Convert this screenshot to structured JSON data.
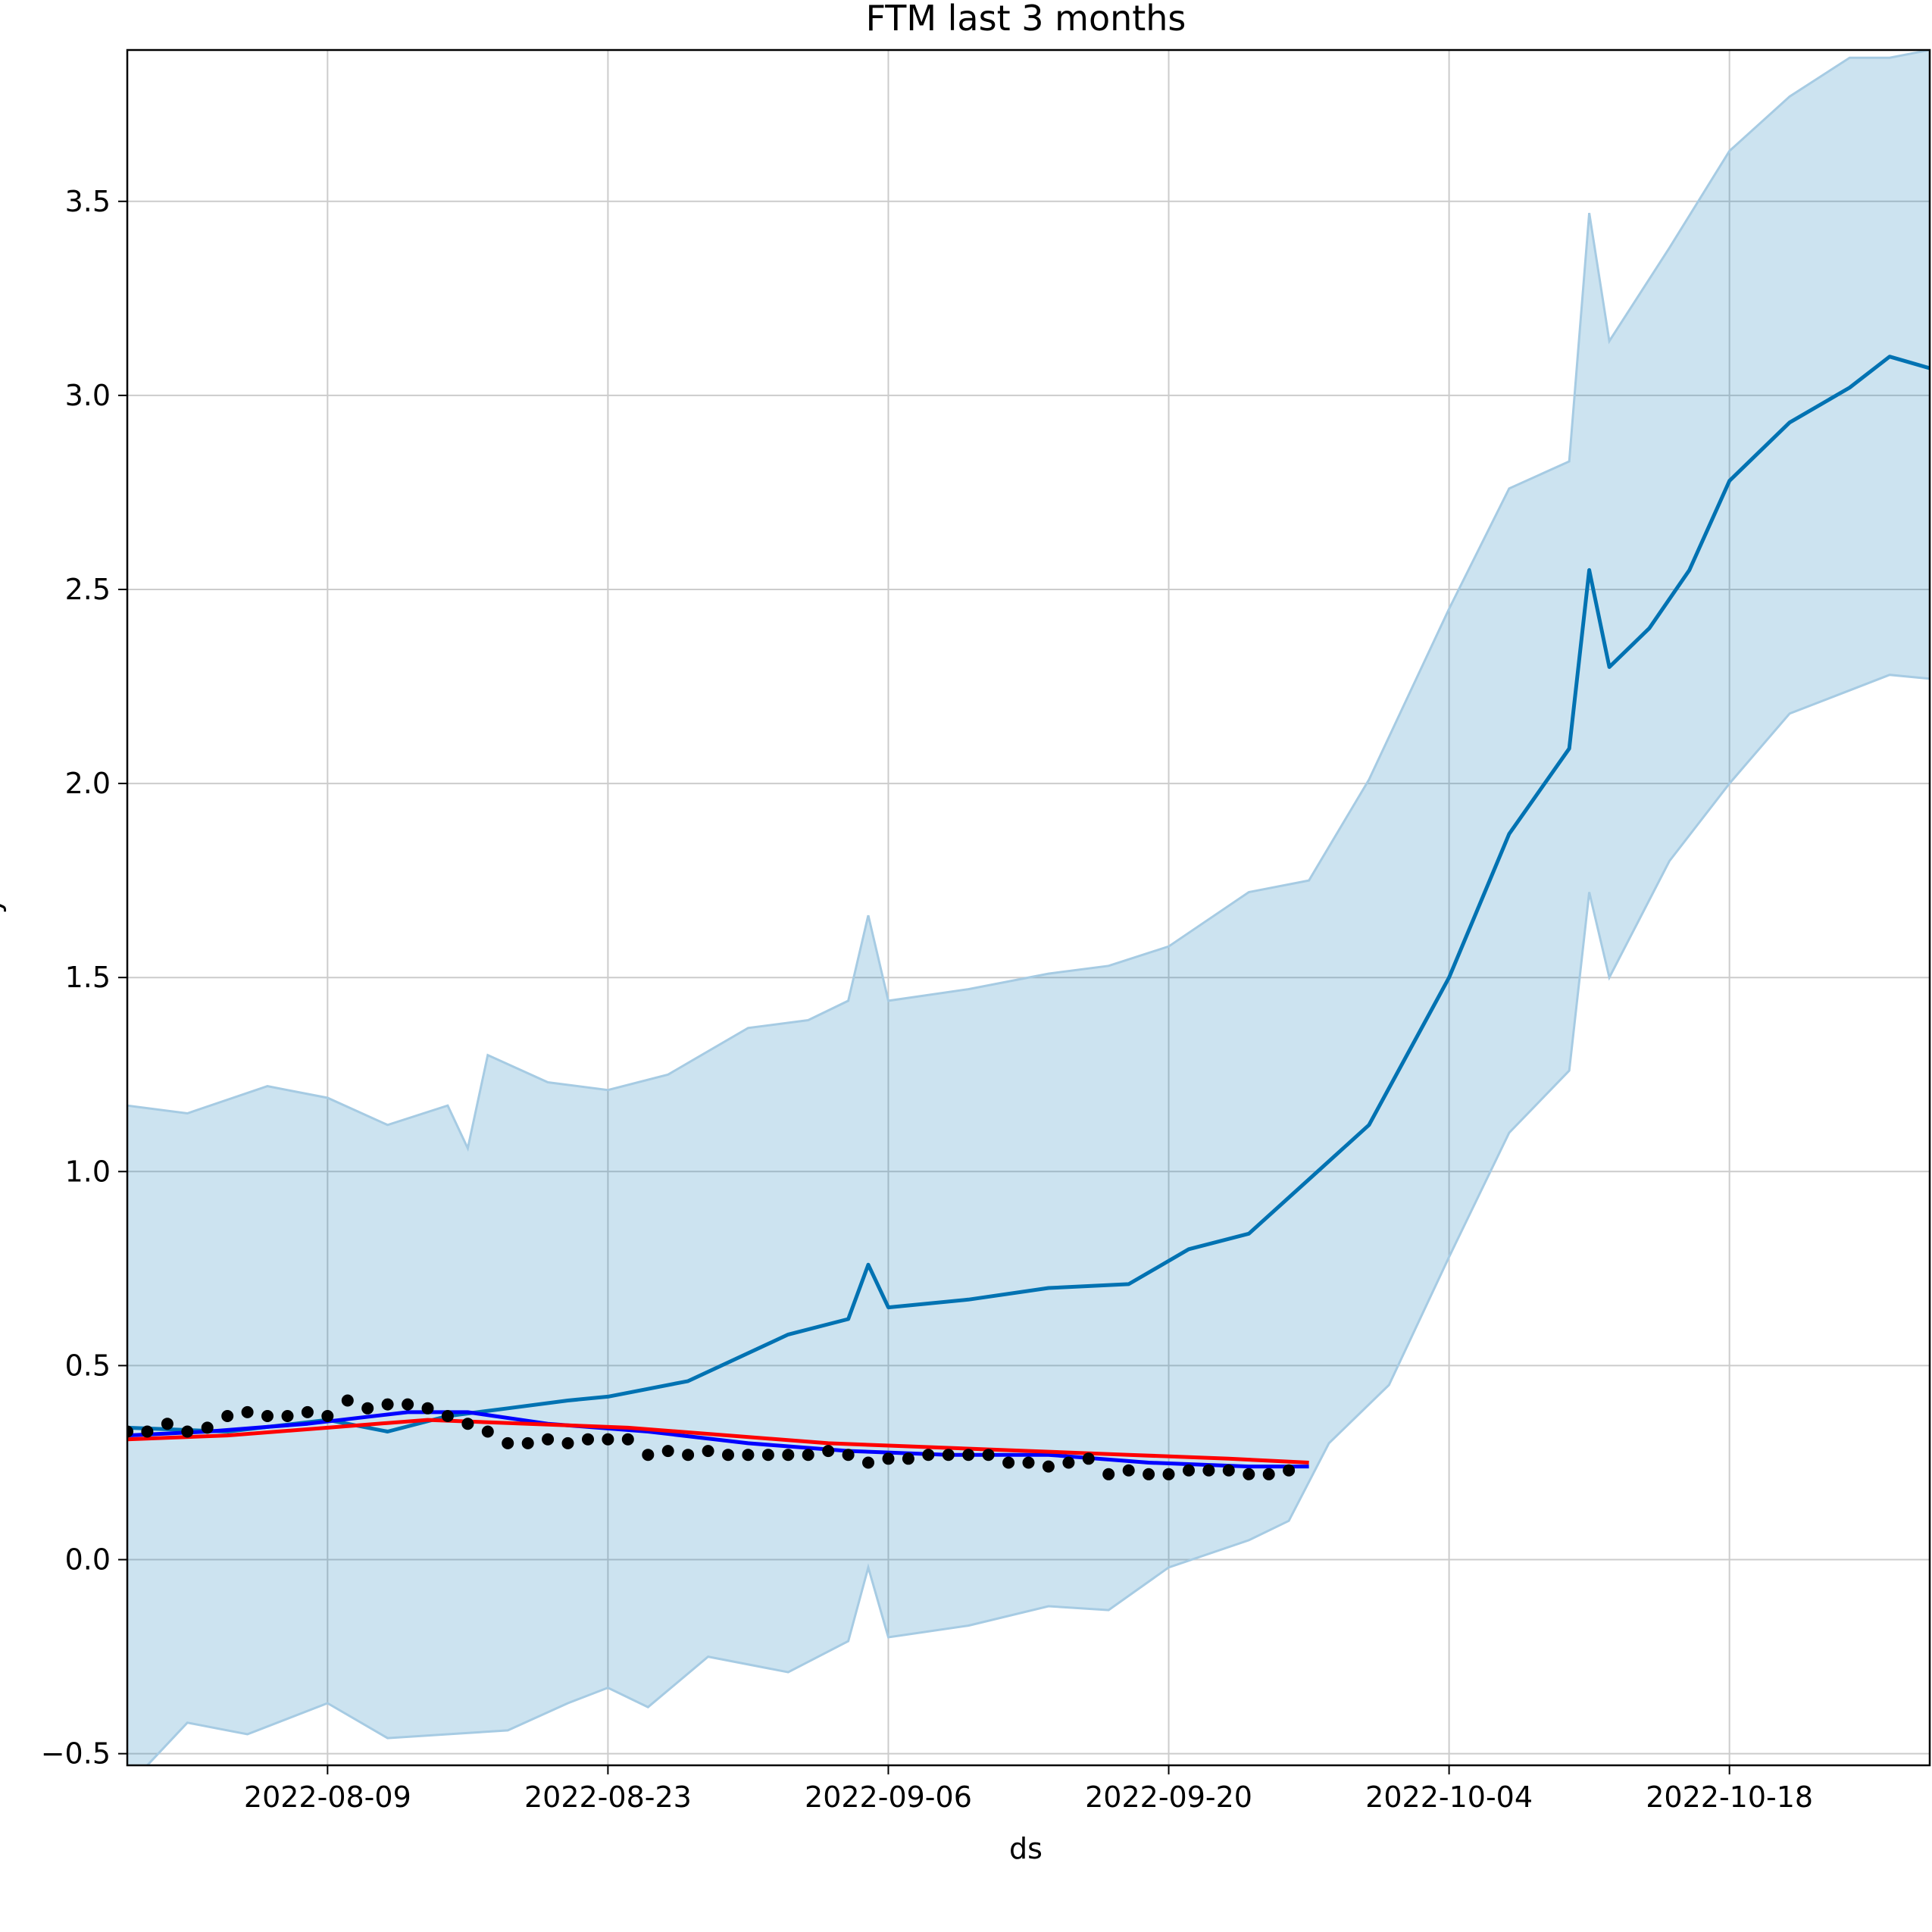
{
  "chart_data": {
    "type": "line",
    "title": "FTM last 3 months",
    "xlabel": "ds",
    "ylabel": "y",
    "x_axis": "date",
    "xlim": [
      "2022-07-30",
      "2022-10-28"
    ],
    "ylim": [
      -0.53,
      3.89
    ],
    "x_ticks": [
      "2022-08-09",
      "2022-08-23",
      "2022-09-06",
      "2022-09-20",
      "2022-10-04",
      "2022-10-18"
    ],
    "y_ticks": [
      "−0.5",
      "0.0",
      "0.5",
      "1.0",
      "1.5",
      "2.0",
      "2.5",
      "3.0",
      "3.5"
    ],
    "grid": true,
    "colors": {
      "forecast": "#0072b2",
      "interval_fill": "#0072b2",
      "moving_average": "#0000ff",
      "trend": "#ff0000",
      "observed": "#000000",
      "grid": "#cccccc"
    },
    "series": [
      {
        "kind": "forecast",
        "x": [
          "2022-07-30",
          "2022-08-04",
          "2022-08-09",
          "2022-08-12",
          "2022-08-15",
          "2022-08-18",
          "2022-08-21",
          "2022-08-23",
          "2022-08-27",
          "2022-09-01",
          "2022-09-04",
          "2022-09-05",
          "2022-09-06",
          "2022-09-10",
          "2022-09-14",
          "2022-09-18",
          "2022-09-21",
          "2022-09-24",
          "2022-09-27",
          "2022-09-30",
          "2022-10-04",
          "2022-10-07",
          "2022-10-10",
          "2022-10-11",
          "2022-10-12",
          "2022-10-14",
          "2022-10-16",
          "2022-10-18",
          "2022-10-21",
          "2022-10-24",
          "2022-10-26",
          "2022-10-28"
        ],
        "y": [
          0.34,
          0.33,
          0.36,
          0.33,
          0.37,
          0.39,
          0.41,
          0.42,
          0.46,
          0.58,
          0.62,
          0.76,
          0.65,
          0.67,
          0.7,
          0.71,
          0.8,
          0.84,
          0.98,
          1.12,
          1.5,
          1.87,
          2.09,
          2.55,
          2.3,
          2.4,
          2.55,
          2.78,
          2.93,
          3.02,
          3.1,
          3.07
        ]
      },
      {
        "kind": "interval_upper",
        "x": [
          "2022-07-30",
          "2022-08-02",
          "2022-08-06",
          "2022-08-09",
          "2022-08-12",
          "2022-08-15",
          "2022-08-16",
          "2022-08-17",
          "2022-08-20",
          "2022-08-23",
          "2022-08-26",
          "2022-08-30",
          "2022-09-02",
          "2022-09-04",
          "2022-09-05",
          "2022-09-06",
          "2022-09-10",
          "2022-09-14",
          "2022-09-17",
          "2022-09-20",
          "2022-09-24",
          "2022-09-27",
          "2022-09-30",
          "2022-10-04",
          "2022-10-07",
          "2022-10-10",
          "2022-10-11",
          "2022-10-12",
          "2022-10-15",
          "2022-10-18",
          "2022-10-21",
          "2022-10-24",
          "2022-10-26",
          "2022-10-28"
        ],
        "y": [
          1.17,
          1.15,
          1.22,
          1.19,
          1.12,
          1.17,
          1.06,
          1.3,
          1.23,
          1.21,
          1.25,
          1.37,
          1.39,
          1.44,
          1.66,
          1.44,
          1.47,
          1.51,
          1.53,
          1.58,
          1.72,
          1.75,
          2.01,
          2.45,
          2.76,
          2.83,
          3.47,
          3.14,
          3.38,
          3.63,
          3.77,
          3.87,
          3.87,
          3.89
        ]
      },
      {
        "kind": "interval_lower",
        "x": [
          "2022-07-30",
          "2022-07-31",
          "2022-08-02",
          "2022-08-05",
          "2022-08-09",
          "2022-08-12",
          "2022-08-15",
          "2022-08-18",
          "2022-08-21",
          "2022-08-23",
          "2022-08-25",
          "2022-08-28",
          "2022-09-01",
          "2022-09-04",
          "2022-09-05",
          "2022-09-06",
          "2022-09-10",
          "2022-09-14",
          "2022-09-17",
          "2022-09-20",
          "2022-09-24",
          "2022-09-26",
          "2022-09-28",
          "2022-10-01",
          "2022-10-04",
          "2022-10-07",
          "2022-10-10",
          "2022-10-11",
          "2022-10-12",
          "2022-10-15",
          "2022-10-18",
          "2022-10-21",
          "2022-10-24",
          "2022-10-26",
          "2022-10-28"
        ],
        "y": [
          -0.58,
          -0.53,
          -0.42,
          -0.45,
          -0.37,
          -0.46,
          -0.45,
          -0.44,
          -0.37,
          -0.33,
          -0.38,
          -0.25,
          -0.29,
          -0.21,
          -0.02,
          -0.2,
          -0.17,
          -0.12,
          -0.13,
          -0.02,
          0.05,
          0.1,
          0.3,
          0.45,
          0.78,
          1.1,
          1.26,
          1.72,
          1.5,
          1.8,
          2.0,
          2.18,
          2.24,
          2.28,
          2.27
        ]
      },
      {
        "kind": "moving_average",
        "x": [
          "2022-07-30",
          "2022-08-03",
          "2022-08-08",
          "2022-08-13",
          "2022-08-16",
          "2022-08-20",
          "2022-08-25",
          "2022-08-30",
          "2022-09-04",
          "2022-09-09",
          "2022-09-14",
          "2022-09-19",
          "2022-09-24",
          "2022-09-27"
        ],
        "y": [
          0.32,
          0.33,
          0.35,
          0.38,
          0.38,
          0.35,
          0.33,
          0.3,
          0.28,
          0.27,
          0.27,
          0.25,
          0.24,
          0.24
        ]
      },
      {
        "kind": "trend",
        "x": [
          "2022-07-30",
          "2022-08-04",
          "2022-08-09",
          "2022-08-14",
          "2022-08-19",
          "2022-08-24",
          "2022-08-29",
          "2022-09-03",
          "2022-09-08",
          "2022-09-13",
          "2022-09-18",
          "2022-09-23",
          "2022-09-27"
        ],
        "y": [
          0.31,
          0.32,
          0.34,
          0.36,
          0.35,
          0.34,
          0.32,
          0.3,
          0.29,
          0.28,
          0.27,
          0.26,
          0.25
        ]
      },
      {
        "kind": "observed",
        "x": [
          "2022-07-30",
          "2022-07-31",
          "2022-08-01",
          "2022-08-02",
          "2022-08-03",
          "2022-08-04",
          "2022-08-05",
          "2022-08-06",
          "2022-08-07",
          "2022-08-08",
          "2022-08-09",
          "2022-08-10",
          "2022-08-11",
          "2022-08-12",
          "2022-08-13",
          "2022-08-14",
          "2022-08-15",
          "2022-08-16",
          "2022-08-17",
          "2022-08-18",
          "2022-08-19",
          "2022-08-20",
          "2022-08-21",
          "2022-08-22",
          "2022-08-23",
          "2022-08-24",
          "2022-08-25",
          "2022-08-26",
          "2022-08-27",
          "2022-08-28",
          "2022-08-29",
          "2022-08-30",
          "2022-08-31",
          "2022-09-01",
          "2022-09-02",
          "2022-09-03",
          "2022-09-04",
          "2022-09-05",
          "2022-09-06",
          "2022-09-07",
          "2022-09-08",
          "2022-09-09",
          "2022-09-10",
          "2022-09-11",
          "2022-09-12",
          "2022-09-13",
          "2022-09-14",
          "2022-09-15",
          "2022-09-16",
          "2022-09-17",
          "2022-09-18",
          "2022-09-19",
          "2022-09-20",
          "2022-09-21",
          "2022-09-22",
          "2022-09-23",
          "2022-09-24",
          "2022-09-25",
          "2022-09-26"
        ],
        "y": [
          0.33,
          0.33,
          0.35,
          0.33,
          0.34,
          0.37,
          0.38,
          0.37,
          0.37,
          0.38,
          0.37,
          0.41,
          0.39,
          0.4,
          0.4,
          0.39,
          0.37,
          0.35,
          0.33,
          0.3,
          0.3,
          0.31,
          0.3,
          0.31,
          0.31,
          0.31,
          0.27,
          0.28,
          0.27,
          0.28,
          0.27,
          0.27,
          0.27,
          0.27,
          0.27,
          0.28,
          0.27,
          0.25,
          0.26,
          0.26,
          0.27,
          0.27,
          0.27,
          0.27,
          0.25,
          0.25,
          0.24,
          0.25,
          0.26,
          0.22,
          0.23,
          0.22,
          0.22,
          0.23,
          0.23,
          0.23,
          0.22,
          0.22,
          0.23
        ]
      }
    ]
  }
}
